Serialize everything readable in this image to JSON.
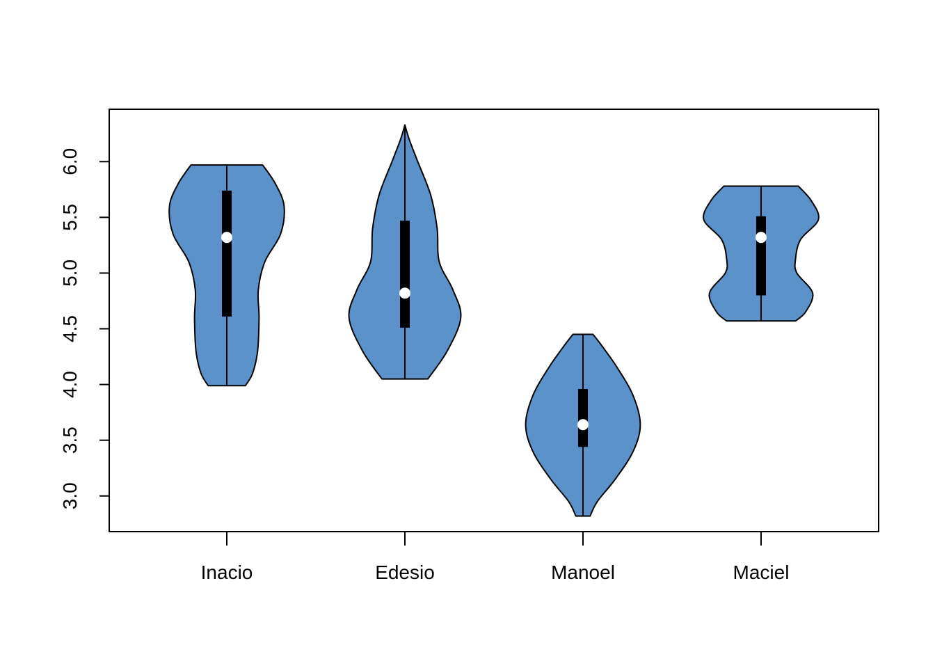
{
  "chart_data": {
    "type": "violin",
    "title": "",
    "xlabel": "",
    "ylabel": "",
    "categories": [
      "Inacio",
      "Edesio",
      "Manoel",
      "Maciel"
    ],
    "ylim": [
      2.68,
      6.47
    ],
    "yticks": [
      "3.0",
      "3.5",
      "4.0",
      "4.5",
      "5.0",
      "5.5",
      "6.0"
    ],
    "fill_color": "#5B92C9",
    "violins": [
      {
        "name": "Inacio",
        "min": 3.99,
        "q1": 4.61,
        "median": 5.32,
        "q3": 5.74,
        "max": 5.97,
        "density_profile": [
          [
            3.99,
            0.26
          ],
          [
            4.1,
            0.36
          ],
          [
            4.3,
            0.43
          ],
          [
            4.6,
            0.45
          ],
          [
            4.85,
            0.44
          ],
          [
            5.1,
            0.53
          ],
          [
            5.35,
            0.75
          ],
          [
            5.6,
            0.8
          ],
          [
            5.8,
            0.68
          ],
          [
            5.97,
            0.5
          ]
        ]
      },
      {
        "name": "Edesio",
        "min": 4.05,
        "q1": 4.51,
        "median": 4.82,
        "q3": 5.47,
        "max": 6.33,
        "density_profile": [
          [
            4.05,
            0.32
          ],
          [
            4.3,
            0.59
          ],
          [
            4.6,
            0.78
          ],
          [
            4.85,
            0.67
          ],
          [
            5.1,
            0.48
          ],
          [
            5.4,
            0.45
          ],
          [
            5.7,
            0.36
          ],
          [
            6.0,
            0.18
          ],
          [
            6.2,
            0.06
          ],
          [
            6.33,
            0.0
          ]
        ]
      },
      {
        "name": "Manoel",
        "min": 2.82,
        "q1": 3.44,
        "median": 3.64,
        "q3": 3.96,
        "max": 4.45,
        "density_profile": [
          [
            2.82,
            0.1
          ],
          [
            2.95,
            0.2
          ],
          [
            3.15,
            0.45
          ],
          [
            3.4,
            0.7
          ],
          [
            3.64,
            0.8
          ],
          [
            3.9,
            0.7
          ],
          [
            4.15,
            0.48
          ],
          [
            4.35,
            0.26
          ],
          [
            4.45,
            0.14
          ]
        ]
      },
      {
        "name": "Maciel",
        "min": 4.57,
        "q1": 4.8,
        "median": 5.32,
        "q3": 5.51,
        "max": 5.78,
        "density_profile": [
          [
            4.57,
            0.48
          ],
          [
            4.65,
            0.62
          ],
          [
            4.82,
            0.72
          ],
          [
            5.0,
            0.5
          ],
          [
            5.12,
            0.48
          ],
          [
            5.3,
            0.55
          ],
          [
            5.48,
            0.8
          ],
          [
            5.65,
            0.7
          ],
          [
            5.78,
            0.52
          ]
        ]
      }
    ]
  }
}
